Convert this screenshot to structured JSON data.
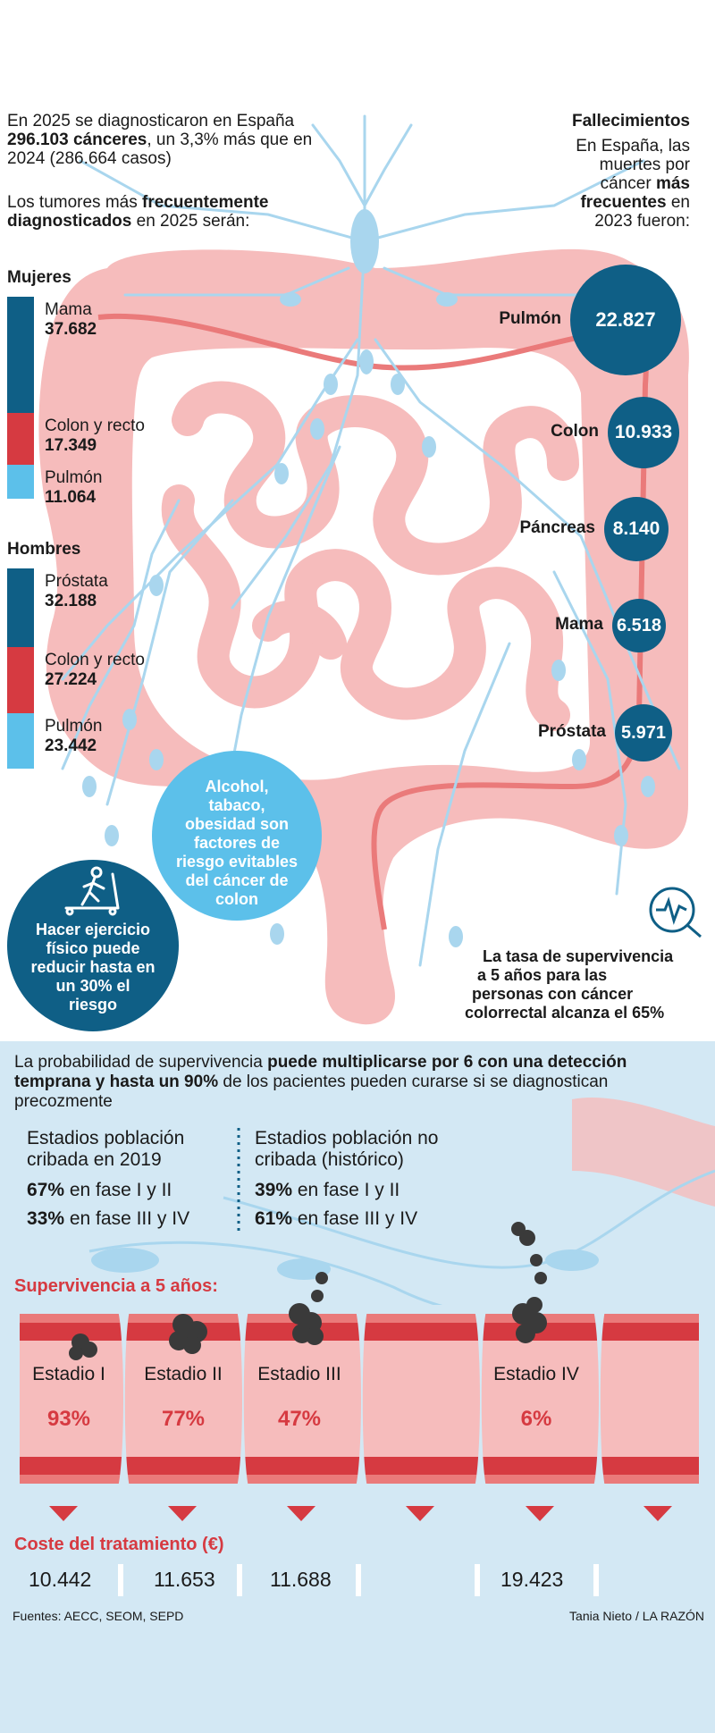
{
  "colors": {
    "navy": "#0f5f86",
    "red": "#d63a41",
    "light_blue": "#5cc0ea",
    "intestine_pink": "#f6bcbc",
    "panel_bg": "#d3e8f4"
  },
  "intro": {
    "line1": "En 2025 se diagnosticaron en España",
    "line2_bold": "296.103 cánceres",
    "line2_rest": ", un 3,3% más que en",
    "line3": "2024 (286.664 casos)",
    "tumors_line1_a": "Los tumores más ",
    "tumors_line1_b": "frecuentemente",
    "tumors_line2_b": "diagnosticados",
    "tumors_line2_rest": " en 2025 serán:"
  },
  "women": {
    "title": "Mujeres",
    "items": [
      {
        "label": "Mama",
        "value": "37.682",
        "color": "#0f5f86"
      },
      {
        "label": "Colon y recto",
        "value": "17.349",
        "color": "#d63a41"
      },
      {
        "label": "Pulmón",
        "value": "11.064",
        "color": "#5cc0ea"
      }
    ]
  },
  "men": {
    "title": "Hombres",
    "items": [
      {
        "label": "Próstata",
        "value": "32.188",
        "color": "#0f5f86"
      },
      {
        "label": "Colon y recto",
        "value": "27.224",
        "color": "#d63a41"
      },
      {
        "label": "Pulmón",
        "value": "23.442",
        "color": "#5cc0ea"
      }
    ]
  },
  "deaths": {
    "title": "Fallecimientos",
    "line1": "En España, las",
    "line2": "muertes por",
    "line3_a": "cáncer ",
    "line3_b": "más",
    "line4_b": "frecuentes",
    "line4_rest": " en",
    "line5": "2023 fueron:",
    "items": [
      {
        "name": "Pulmón",
        "value": "22.827"
      },
      {
        "name": "Colon",
        "value": "10.933"
      },
      {
        "name": "Páncreas",
        "value": "8.140"
      },
      {
        "name": "Mama",
        "value": "6.518"
      },
      {
        "name": "Próstata",
        "value": "5.971"
      }
    ]
  },
  "risk_circle": [
    "Alcohol,",
    "tabaco,",
    "obesidad son",
    "factores de",
    "riesgo evitables",
    "del cáncer de",
    "colon"
  ],
  "exercise_circle": [
    "Hacer ejercicio",
    "físico puede",
    "reducir hasta en",
    "un 30% el",
    "riesgo"
  ],
  "survival_note": [
    "La tasa de supervivencia",
    "a 5 años para las",
    "personas con cáncer",
    "colorrectal alcanza el 65%"
  ],
  "panel": {
    "intro_a": "La probabilidad de supervivencia ",
    "intro_b": "puede multiplicarse por 6 con una",
    "intro_c": "detección temprana y hasta un 90%",
    "intro_d": " de los pacientes pueden curarse si se",
    "intro_e": "diagnostican precozmente",
    "screened_title_1": "Estadios población",
    "screened_title_2": "cribada en 2019",
    "screened_a_pct": "67%",
    "screened_a_txt": " en fase I y II",
    "screened_b_pct": "33%",
    "screened_b_txt": " en fase III y IV",
    "unscreened_title_1": "Estadios población no",
    "unscreened_title_2": "cribada (histórico)",
    "unscreened_a_pct": "39%",
    "unscreened_a_txt": " en fase I y II",
    "unscreened_b_pct": "61%",
    "unscreened_b_txt": " en fase III y IV",
    "survival_title": "Supervivencia a 5 años:",
    "stages": [
      {
        "name": "Estadio I",
        "pct": "93%",
        "cost": "10.442"
      },
      {
        "name": "Estadio II",
        "pct": "77%",
        "cost": "11.653"
      },
      {
        "name": "Estadio III",
        "pct": "47%",
        "cost": "11.688"
      },
      {
        "name": "Estadio IV",
        "pct": "6%",
        "cost": "19.423"
      }
    ],
    "cost_title": "Coste del tratamiento (€)",
    "sources": "Fuentes: AECC, SEOM, SEPD",
    "credit": "Tania Nieto / LA RAZÓN"
  }
}
